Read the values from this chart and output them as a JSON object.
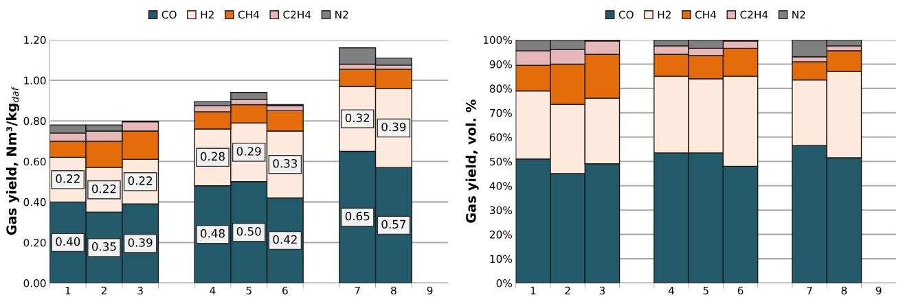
{
  "chart_data": [
    {
      "type": "bar",
      "stacked": true,
      "ylabel": "Gas yield, Nm³/kg$_{daf}$",
      "categories": [
        "1",
        "2",
        "3",
        null,
        "4",
        "5",
        "6",
        null,
        "7",
        "8",
        "9"
      ],
      "ylim": [
        0,
        1.2
      ],
      "yticks": [
        {
          "value": 0,
          "label": "0.00"
        },
        {
          "value": 0.2,
          "label": "0.20"
        },
        {
          "value": 0.4,
          "label": "0.40"
        },
        {
          "value": 0.6,
          "label": "0.60"
        },
        {
          "value": 0.8,
          "label": "0.80"
        },
        {
          "value": 1.0,
          "label": "1.00"
        },
        {
          "value": 1.2,
          "label": "1.20"
        }
      ],
      "grid": "y",
      "legend": "top",
      "series": [
        {
          "name": "CO",
          "color": "#235a6a",
          "values": [
            0.4,
            0.35,
            0.39,
            null,
            0.48,
            0.5,
            0.42,
            null,
            0.65,
            0.57,
            null
          ],
          "value_labels": [
            "0.40",
            "0.35",
            "0.39",
            null,
            "0.48",
            "0.50",
            "0.42",
            null,
            "0.65",
            "0.57",
            null
          ]
        },
        {
          "name": "H2",
          "color": "#fdeadc",
          "values": [
            0.22,
            0.22,
            0.22,
            null,
            0.28,
            0.29,
            0.33,
            null,
            0.32,
            0.39,
            null
          ],
          "value_labels": [
            "0.22",
            "0.22",
            "0.22",
            null,
            "0.28",
            "0.29",
            "0.33",
            null,
            "0.32",
            "0.39",
            null
          ]
        },
        {
          "name": "CH4",
          "color": "#e46c0a",
          "values": [
            0.08,
            0.13,
            0.14,
            null,
            0.085,
            0.09,
            0.1,
            null,
            0.085,
            0.095,
            null
          ]
        },
        {
          "name": "C2H4",
          "color": "#e6b9b8",
          "values": [
            0.04,
            0.05,
            0.045,
            null,
            0.03,
            0.025,
            0.025,
            null,
            0.025,
            0.02,
            null
          ]
        },
        {
          "name": "N2",
          "color": "#808080",
          "values": [
            0.04,
            0.03,
            0.003,
            null,
            0.02,
            0.035,
            0.005,
            null,
            0.08,
            0.035,
            null
          ]
        }
      ]
    },
    {
      "type": "bar",
      "stacked": true,
      "ylabel": "Gas yield, vol. %",
      "categories": [
        "1",
        "2",
        "3",
        null,
        "4",
        "5",
        "6",
        null,
        "7",
        "8",
        "9"
      ],
      "ylim": [
        0,
        100
      ],
      "yticks": [
        {
          "value": 0,
          "label": "0%"
        },
        {
          "value": 10,
          "label": "10%"
        },
        {
          "value": 20,
          "label": "20%"
        },
        {
          "value": 30,
          "label": "30%"
        },
        {
          "value": 40,
          "label": "40%"
        },
        {
          "value": 50,
          "label": "50%"
        },
        {
          "value": 60,
          "label": "60%"
        },
        {
          "value": 70,
          "label": "70%"
        },
        {
          "value": 80,
          "label": "80%"
        },
        {
          "value": 90,
          "label": "90%"
        },
        {
          "value": 100,
          "label": "100%"
        }
      ],
      "grid": "y",
      "legend": "top",
      "series": [
        {
          "name": "CO",
          "color": "#235a6a",
          "values": [
            51,
            45,
            49,
            null,
            53.5,
            53.5,
            48,
            null,
            56.5,
            51.5,
            null
          ]
        },
        {
          "name": "H2",
          "color": "#fdeadc",
          "values": [
            28,
            28.5,
            27,
            null,
            31.5,
            30.5,
            37,
            null,
            27,
            35.5,
            null
          ]
        },
        {
          "name": "CH4",
          "color": "#e46c0a",
          "values": [
            10.5,
            16.5,
            18,
            null,
            9,
            9.5,
            11.5,
            null,
            7.5,
            8.5,
            null
          ]
        },
        {
          "name": "C2H4",
          "color": "#e6b9b8",
          "values": [
            6,
            6,
            5.5,
            null,
            3.5,
            3,
            3,
            null,
            2,
            2,
            null
          ]
        },
        {
          "name": "N2",
          "color": "#808080",
          "values": [
            4.5,
            4,
            0.5,
            null,
            2.5,
            3.5,
            0.5,
            null,
            7,
            2.5,
            null
          ]
        }
      ]
    }
  ]
}
